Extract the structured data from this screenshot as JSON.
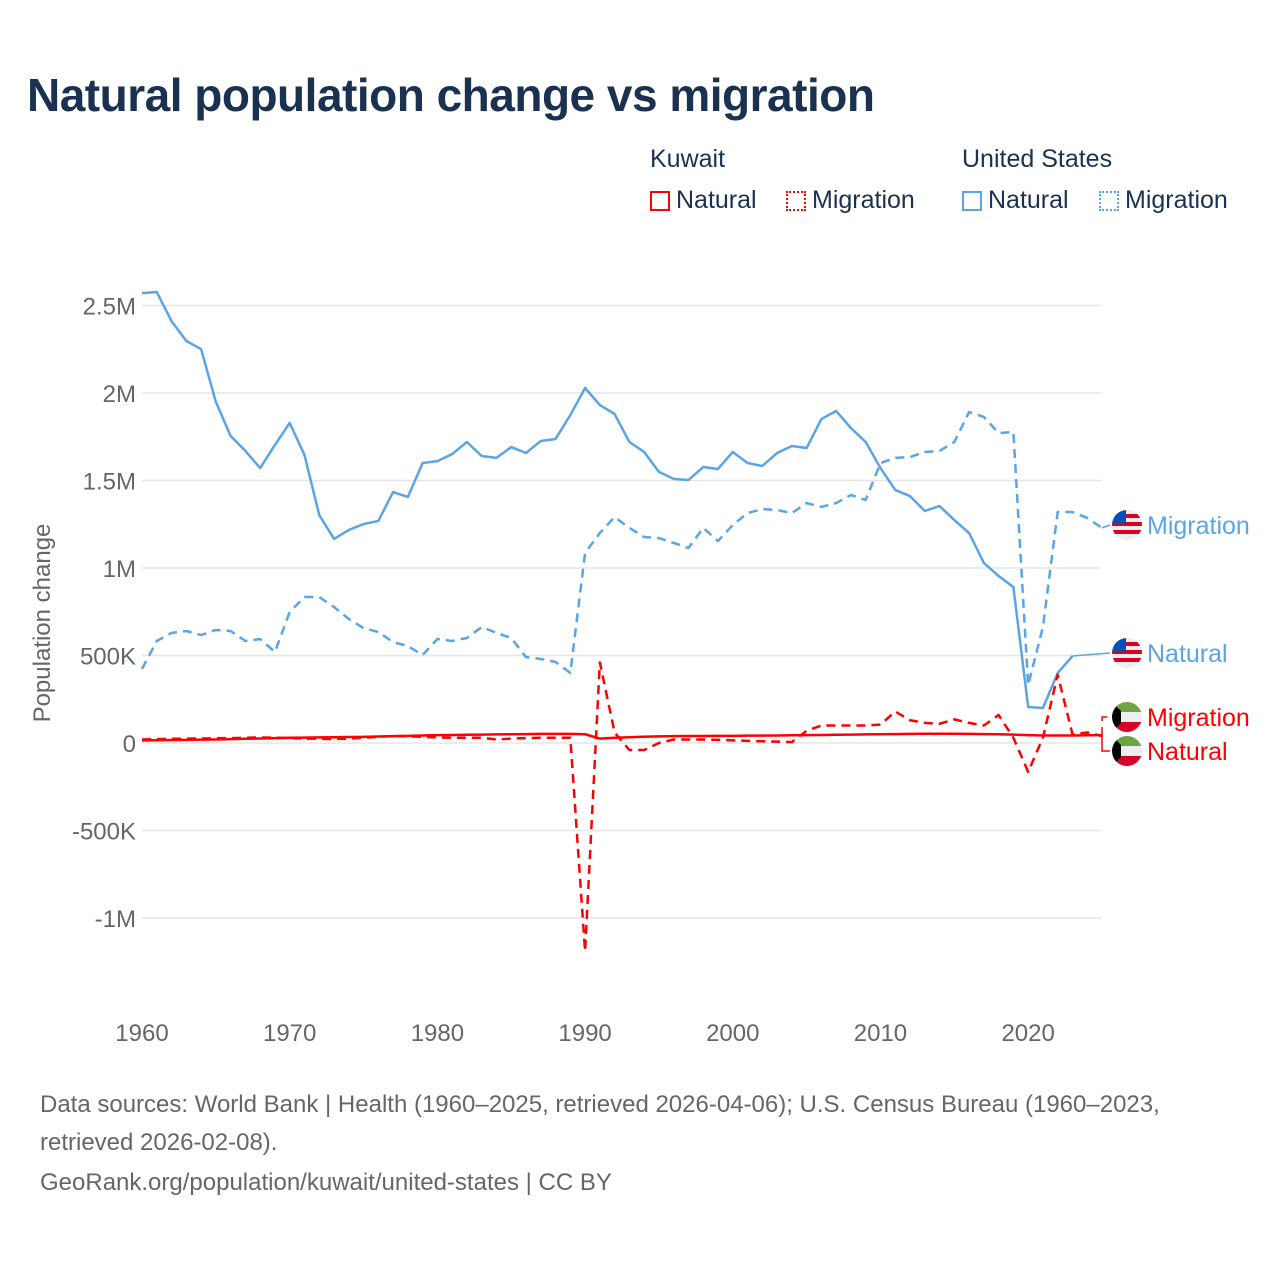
{
  "chart_data": {
    "type": "line",
    "title": "Natural population change vs migration",
    "ylabel": "Population change",
    "xlabel": "",
    "xlim": [
      1960,
      2025
    ],
    "ylim": [
      -1200000,
      2600000
    ],
    "grid": true,
    "x_ticks": [
      {
        "v": 1960,
        "label": "1960"
      },
      {
        "v": 1970,
        "label": "1970"
      },
      {
        "v": 1980,
        "label": "1980"
      },
      {
        "v": 1990,
        "label": "1990"
      },
      {
        "v": 2000,
        "label": "2000"
      },
      {
        "v": 2010,
        "label": "2010"
      },
      {
        "v": 2020,
        "label": "2020"
      }
    ],
    "y_ticks": [
      {
        "v": 2500000,
        "label": "2.5M"
      },
      {
        "v": 2000000,
        "label": "2M"
      },
      {
        "v": 1500000,
        "label": "1.5M"
      },
      {
        "v": 1000000,
        "label": "1M"
      },
      {
        "v": 500000,
        "label": "500K"
      },
      {
        "v": 0,
        "label": "0"
      },
      {
        "v": -500000,
        "label": "-500K"
      },
      {
        "v": -1000000,
        "label": "-1M"
      }
    ],
    "legend": {
      "placement": "top-right",
      "groups": [
        {
          "name": "Kuwait",
          "items": [
            "Natural",
            "Migration"
          ]
        },
        {
          "name": "United States",
          "items": [
            "Natural",
            "Migration"
          ]
        }
      ]
    },
    "units": "thousands",
    "series": [
      {
        "name": "United States Natural",
        "country": "United States",
        "kind": "Natural",
        "color": "#5ba4e6",
        "dash": false,
        "start": 1960,
        "end_label": "Natural",
        "values": [
          2571,
          2577,
          2411,
          2297,
          2251,
          1949,
          1754,
          1669,
          1571,
          1703,
          1829,
          1646,
          1303,
          1166,
          1217,
          1251,
          1269,
          1434,
          1406,
          1600,
          1611,
          1651,
          1720,
          1640,
          1629,
          1691,
          1657,
          1726,
          1737,
          1874,
          2029,
          1931,
          1880,
          1720,
          1663,
          1549,
          1509,
          1503,
          1577,
          1566,
          1663,
          1600,
          1583,
          1657,
          1697,
          1686,
          1851,
          1897,
          1800,
          1720,
          1571,
          1446,
          1411,
          1326,
          1354,
          1274,
          1200,
          1029,
          954,
          891,
          206,
          200,
          400,
          497
        ]
      },
      {
        "name": "United States Migration",
        "country": "United States",
        "kind": "Migration",
        "color": "#5ba4e6",
        "dash": true,
        "start": 1960,
        "end_label": "Migration",
        "values": [
          423,
          583,
          629,
          640,
          617,
          646,
          640,
          583,
          594,
          520,
          749,
          834,
          834,
          777,
          709,
          657,
          634,
          577,
          554,
          503,
          594,
          583,
          600,
          663,
          629,
          600,
          491,
          480,
          463,
          400,
          1086,
          1200,
          1291,
          1229,
          1177,
          1171,
          1143,
          1114,
          1229,
          1154,
          1246,
          1314,
          1337,
          1331,
          1314,
          1371,
          1349,
          1371,
          1417,
          1389,
          1600,
          1629,
          1634,
          1663,
          1669,
          1720,
          1891,
          1863,
          1771,
          1777,
          331,
          663,
          1320,
          1320,
          1286,
          1229
        ]
      },
      {
        "name": "Kuwait Migration",
        "country": "Kuwait",
        "kind": "Migration",
        "color": "#ff0000",
        "dash": true,
        "start": 1960,
        "end_label": "Migration",
        "values": [
          20,
          22,
          24,
          25,
          26,
          27,
          28,
          30,
          32,
          30,
          28,
          25,
          24,
          23,
          25,
          30,
          35,
          40,
          38,
          35,
          32,
          30,
          30,
          30,
          20,
          25,
          28,
          30,
          30,
          30,
          -1190,
          460,
          60,
          -40,
          -40,
          0,
          20,
          20,
          20,
          18,
          15,
          12,
          10,
          8,
          5,
          70,
          100,
          100,
          100,
          100,
          105,
          180,
          130,
          115,
          110,
          135,
          115,
          100,
          160,
          30,
          -165,
          30,
          390,
          50,
          60,
          40
        ]
      },
      {
        "name": "Kuwait Natural",
        "country": "Kuwait",
        "kind": "Natural",
        "color": "#ff0000",
        "dash": false,
        "start": 1960,
        "end_label": "Natural",
        "values": [
          15,
          16,
          17,
          18,
          19,
          20,
          22,
          24,
          26,
          28,
          30,
          31,
          32,
          33,
          34,
          35,
          37,
          39,
          41,
          43,
          45,
          46,
          47,
          48,
          49,
          50,
          51,
          52,
          52,
          52,
          50,
          25,
          30,
          33,
          36,
          38,
          39,
          40,
          40,
          41,
          41,
          42,
          42,
          43,
          44,
          45,
          46,
          47,
          48,
          49,
          50,
          51,
          52,
          53,
          53,
          53,
          52,
          51,
          50,
          48,
          45,
          43,
          43,
          43,
          44,
          45
        ]
      }
    ]
  },
  "legend": {
    "kuwait": "Kuwait",
    "united_states": "United States",
    "natural": "Natural",
    "migration": "Migration"
  },
  "footer": {
    "sources": "Data sources: World Bank | Health (1960–2025, retrieved 2026-04-06); U.S. Census Bureau (1960–2023, retrieved 2026-02-08).",
    "link": "GeoRank.org/population/kuwait/united-states | CC BY"
  },
  "colors": {
    "kuwait": "#ff0000",
    "united_states": "#5ba4e6",
    "title": "#1a3150"
  }
}
